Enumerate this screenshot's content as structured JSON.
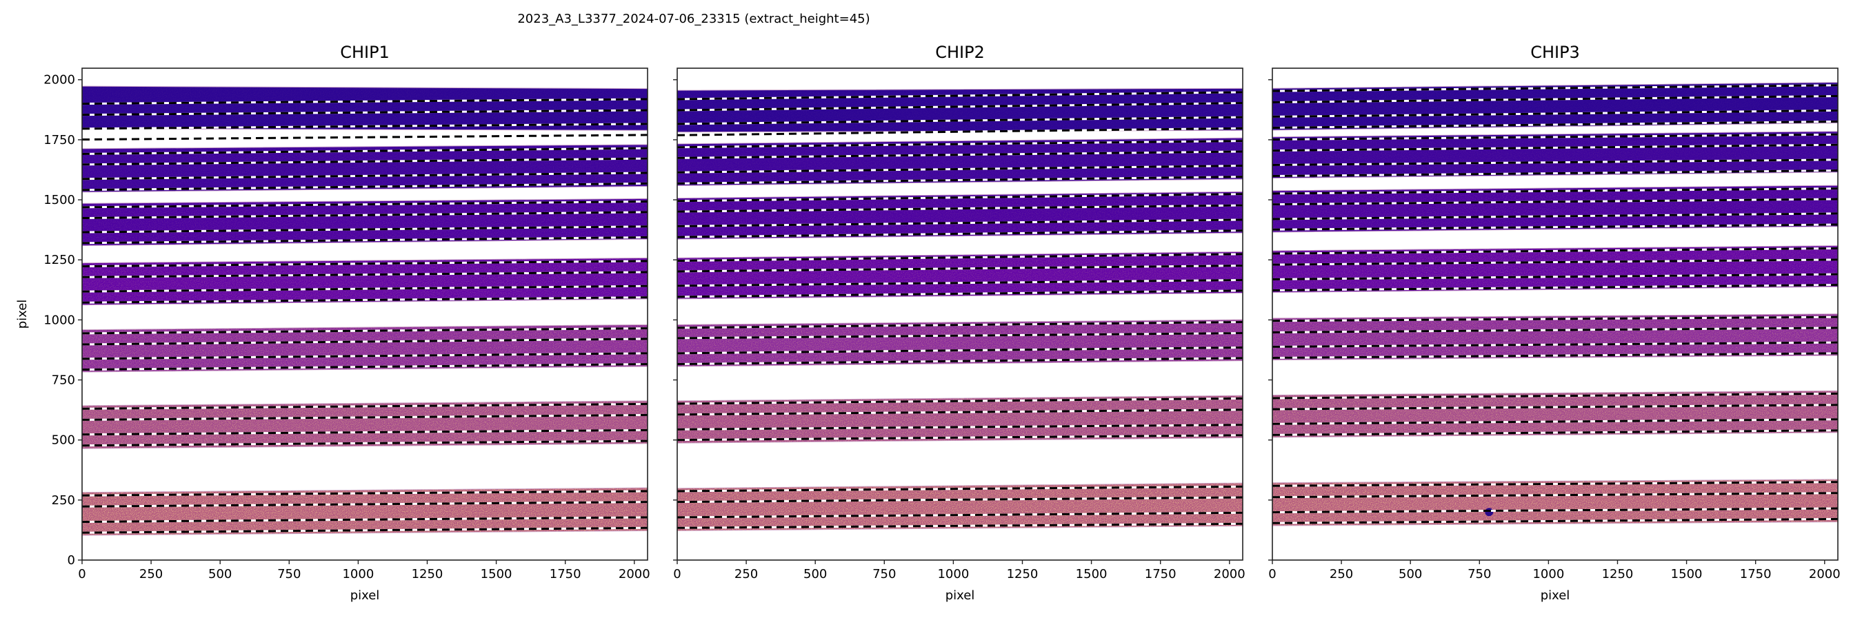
{
  "figure": {
    "title": "2023_A3_L3377_2024-07-06_23315  (extract_height=45)",
    "colormap": "plasma",
    "trace_style": "black/white dashed"
  },
  "chart_data": [
    {
      "type": "heatmap",
      "title": "CHIP1",
      "xlabel": "pixel",
      "ylabel": "pixel",
      "xlim": [
        0,
        2048
      ],
      "ylim": [
        0,
        2048
      ],
      "xticks": [
        "0",
        "250",
        "500",
        "750",
        "1000",
        "1250",
        "1500",
        "1750",
        "2000"
      ],
      "yticks": [
        "0",
        "250",
        "500",
        "750",
        "1000",
        "1250",
        "1500",
        "1750",
        "2000"
      ],
      "show_ytick_labels": true,
      "grid": false,
      "orders_note_x": [
        0,
        2048
      ],
      "orders": [
        {
          "bottom": [
            1796,
            1789
          ],
          "top": [
            1973,
            1963
          ],
          "color": "#2d0594",
          "speckle": 0.05
        },
        {
          "bottom": [
            1532,
            1556
          ],
          "top": [
            1713,
            1730
          ],
          "color": "#3e049c",
          "speckle": 0.08
        },
        {
          "bottom": [
            1309,
            1336
          ],
          "top": [
            1485,
            1505
          ],
          "color": "#4c02a1",
          "speckle": 0.12
        },
        {
          "bottom": [
            1062,
            1087
          ],
          "top": [
            1237,
            1258
          ],
          "color": "#6305a6",
          "speckle": 0.2
        },
        {
          "bottom": [
            783,
            806
          ],
          "top": [
            959,
            980
          ],
          "color": "#8a2b9c",
          "speckle": 0.35
        },
        {
          "bottom": [
            464,
            485
          ],
          "top": [
            643,
            663
          ],
          "color": "#a44a8c",
          "speckle": 0.5
        },
        {
          "bottom": [
            103,
            122
          ],
          "top": [
            282,
            301
          ],
          "color": "#b45a80",
          "speckle": 0.7
        }
      ],
      "traces": [
        [
          1900,
          1919
        ],
        [
          1854,
          1873
        ],
        [
          1796,
          1816
        ],
        [
          1751,
          1770
        ],
        [
          1691,
          1715
        ],
        [
          1647,
          1672
        ],
        [
          1587,
          1612
        ],
        [
          1541,
          1568
        ],
        [
          1469,
          1493
        ],
        [
          1424,
          1449
        ],
        [
          1365,
          1389
        ],
        [
          1320,
          1344
        ],
        [
          1223,
          1245
        ],
        [
          1178,
          1199
        ],
        [
          1118,
          1141
        ],
        [
          1072,
          1094
        ],
        [
          944,
          965
        ],
        [
          898,
          921
        ],
        [
          838,
          861
        ],
        [
          793,
          816
        ],
        [
          630,
          650
        ],
        [
          584,
          604
        ],
        [
          523,
          541
        ],
        [
          477,
          496
        ],
        [
          269,
          287
        ],
        [
          223,
          242
        ],
        [
          159,
          178
        ],
        [
          114,
          134
        ]
      ],
      "markers": []
    },
    {
      "type": "heatmap",
      "title": "CHIP2",
      "xlabel": "pixel",
      "ylabel": "",
      "xlim": [
        0,
        2048
      ],
      "ylim": [
        0,
        2048
      ],
      "xticks": [
        "0",
        "250",
        "500",
        "750",
        "1000",
        "1250",
        "1500",
        "1750",
        "2000"
      ],
      "yticks": [
        "0",
        "250",
        "500",
        "750",
        "1000",
        "1250",
        "1500",
        "1750",
        "2000"
      ],
      "show_ytick_labels": false,
      "grid": false,
      "orders": [
        {
          "bottom": [
            1782,
            1789
          ],
          "top": [
            1956,
            1964
          ],
          "color": "#2d0594",
          "speckle": 0.05
        },
        {
          "bottom": [
            1559,
            1586
          ],
          "top": [
            1733,
            1758
          ],
          "color": "#3e049c",
          "speckle": 0.08
        },
        {
          "bottom": [
            1336,
            1362
          ],
          "top": [
            1507,
            1534
          ],
          "color": "#4c02a1",
          "speckle": 0.12
        },
        {
          "bottom": [
            1087,
            1112
          ],
          "top": [
            1258,
            1284
          ],
          "color": "#6305a6",
          "speckle": 0.2
        },
        {
          "bottom": [
            806,
            830
          ],
          "top": [
            980,
            1001
          ],
          "color": "#8a2b9c",
          "speckle": 0.35
        },
        {
          "bottom": [
            487,
            509
          ],
          "top": [
            663,
            685
          ],
          "color": "#a44a8c",
          "speckle": 0.5
        },
        {
          "bottom": [
            122,
            142
          ],
          "top": [
            299,
            321
          ],
          "color": "#b45a80",
          "speckle": 0.7
        }
      ],
      "traces": [
        [
          1919,
          1948
        ],
        [
          1873,
          1903
        ],
        [
          1816,
          1844
        ],
        [
          1769,
          1798
        ],
        [
          1719,
          1745
        ],
        [
          1674,
          1701
        ],
        [
          1614,
          1642
        ],
        [
          1568,
          1596
        ],
        [
          1495,
          1524
        ],
        [
          1451,
          1477
        ],
        [
          1390,
          1417
        ],
        [
          1345,
          1372
        ],
        [
          1246,
          1274
        ],
        [
          1202,
          1226
        ],
        [
          1142,
          1166
        ],
        [
          1096,
          1122
        ],
        [
          967,
          991
        ],
        [
          924,
          945
        ],
        [
          861,
          885
        ],
        [
          816,
          841
        ],
        [
          651,
          673
        ],
        [
          606,
          626
        ],
        [
          544,
          563
        ],
        [
          500,
          520
        ],
        [
          287,
          306
        ],
        [
          242,
          261
        ],
        [
          178,
          197
        ],
        [
          134,
          151
        ]
      ],
      "markers": []
    },
    {
      "type": "heatmap",
      "title": "CHIP3",
      "xlabel": "pixel",
      "ylabel": "",
      "xlim": [
        0,
        2048
      ],
      "ylim": [
        0,
        2048
      ],
      "xticks": [
        "0",
        "250",
        "500",
        "750",
        "1000",
        "1250",
        "1500",
        "1750",
        "2000"
      ],
      "yticks": [
        "0",
        "250",
        "500",
        "750",
        "1000",
        "1250",
        "1500",
        "1750",
        "2000"
      ],
      "show_ytick_labels": false,
      "grid": false,
      "orders": [
        {
          "bottom": [
            1790,
            1820
          ],
          "top": [
            1964,
            1989
          ],
          "color": "#2d0594",
          "speckle": 0.05
        },
        {
          "bottom": [
            1590,
            1615
          ],
          "top": [
            1762,
            1785
          ],
          "color": "#3e049c",
          "speckle": 0.08
        },
        {
          "bottom": [
            1365,
            1389
          ],
          "top": [
            1538,
            1560
          ],
          "color": "#4c02a1",
          "speckle": 0.12
        },
        {
          "bottom": [
            1114,
            1138
          ],
          "top": [
            1288,
            1309
          ],
          "color": "#6305a6",
          "speckle": 0.2
        },
        {
          "bottom": [
            833,
            852
          ],
          "top": [
            1007,
            1025
          ],
          "color": "#8a2b9c",
          "speckle": 0.35
        },
        {
          "bottom": [
            511,
            531
          ],
          "top": [
            687,
            705
          ],
          "color": "#a44a8c",
          "speckle": 0.5
        },
        {
          "bottom": [
            143,
            159
          ],
          "top": [
            322,
            336
          ],
          "color": "#b45a80",
          "speckle": 0.7
        }
      ],
      "traces": [
        [
          1953,
          1977
        ],
        [
          1906,
          1932
        ],
        [
          1846,
          1872
        ],
        [
          1800,
          1826
        ],
        [
          1751,
          1772
        ],
        [
          1705,
          1729
        ],
        [
          1645,
          1667
        ],
        [
          1599,
          1622
        ],
        [
          1526,
          1547
        ],
        [
          1481,
          1503
        ],
        [
          1420,
          1443
        ],
        [
          1376,
          1397
        ],
        [
          1276,
          1298
        ],
        [
          1230,
          1251
        ],
        [
          1169,
          1190
        ],
        [
          1123,
          1146
        ],
        [
          996,
          1012
        ],
        [
          948,
          967
        ],
        [
          888,
          906
        ],
        [
          842,
          861
        ],
        [
          674,
          693
        ],
        [
          628,
          646
        ],
        [
          567,
          586
        ],
        [
          521,
          540
        ],
        [
          309,
          325
        ],
        [
          262,
          279
        ],
        [
          199,
          215
        ],
        [
          154,
          171
        ]
      ],
      "markers": [
        {
          "x": 785,
          "y": 200,
          "color": "#2a0a8a"
        }
      ]
    }
  ]
}
